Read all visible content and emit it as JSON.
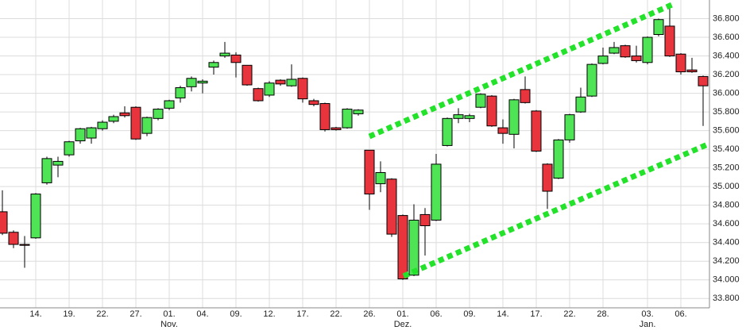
{
  "chart_data": {
    "type": "candlestick",
    "categories": [
      null,
      null,
      null,
      "14.",
      null,
      null,
      "19.",
      null,
      null,
      "22.",
      null,
      null,
      "27.",
      null,
      null,
      "01.",
      null,
      null,
      "04.",
      null,
      null,
      "09.",
      null,
      null,
      "12.",
      null,
      null,
      "17.",
      null,
      null,
      "22.",
      null,
      null,
      "26.",
      null,
      null,
      "01.",
      null,
      null,
      "06.",
      null,
      null,
      "09.",
      null,
      null,
      "14.",
      null,
      null,
      "17.",
      null,
      null,
      "22.",
      null,
      null,
      "28.",
      null,
      null,
      null,
      "03.",
      null,
      null,
      "06.",
      null,
      null
    ],
    "months": [
      null,
      null,
      null,
      null,
      null,
      null,
      null,
      null,
      null,
      null,
      null,
      null,
      null,
      null,
      null,
      "Nov.",
      null,
      null,
      null,
      null,
      null,
      null,
      null,
      null,
      null,
      null,
      null,
      null,
      null,
      null,
      null,
      null,
      null,
      null,
      null,
      null,
      "Dez.",
      null,
      null,
      null,
      null,
      null,
      null,
      null,
      null,
      null,
      null,
      null,
      null,
      null,
      null,
      null,
      null,
      null,
      null,
      null,
      null,
      null,
      "Jan.",
      null,
      null,
      null,
      null,
      null
    ],
    "open": [
      34730,
      34510,
      34380,
      34450,
      35040,
      35230,
      35340,
      35490,
      35520,
      35620,
      35700,
      35790,
      35850,
      35570,
      35730,
      35840,
      35950,
      36070,
      36110,
      36280,
      36400,
      36410,
      36300,
      36050,
      35980,
      36140,
      36080,
      36160,
      35920,
      35890,
      35630,
      35630,
      35780,
      35390,
      35030,
      35080,
      34690,
      34050,
      34700,
      34640,
      35440,
      35730,
      35730,
      35850,
      35970,
      35630,
      35560,
      36040,
      35810,
      35240,
      35090,
      35500,
      35800,
      35970,
      36320,
      36430,
      36510,
      36400,
      36330,
      36630,
      36720,
      36420,
      36250,
      36180
    ],
    "high": [
      34960,
      34530,
      34470,
      34930,
      35320,
      35320,
      35490,
      35630,
      35640,
      35710,
      35770,
      35860,
      35860,
      35750,
      35840,
      35930,
      36080,
      36180,
      36150,
      36350,
      36550,
      36440,
      36300,
      36060,
      36130,
      36150,
      36310,
      36170,
      35940,
      35900,
      35640,
      35840,
      35830,
      35390,
      35270,
      35090,
      34700,
      34810,
      34770,
      35350,
      35740,
      35840,
      35780,
      36000,
      35980,
      35720,
      35940,
      36180,
      35820,
      35250,
      35510,
      35780,
      36060,
      36320,
      36490,
      36550,
      36520,
      36510,
      36610,
      36800,
      36950,
      36430,
      36380,
      36190
    ],
    "low": [
      34480,
      34340,
      34130,
      34440,
      35020,
      35100,
      35320,
      35460,
      35460,
      35600,
      35680,
      35740,
      35500,
      35540,
      35710,
      35820,
      35900,
      36020,
      36000,
      36200,
      36380,
      36170,
      36080,
      35910,
      35960,
      36080,
      36070,
      35900,
      35860,
      35590,
      35600,
      35620,
      35760,
      34750,
      34940,
      34460,
      34000,
      34040,
      34260,
      34630,
      35430,
      35680,
      35690,
      35840,
      35640,
      35460,
      35410,
      35890,
      35370,
      34760,
      35080,
      35470,
      35790,
      35960,
      36310,
      36420,
      36380,
      36330,
      36310,
      36610,
      36390,
      36200,
      36220,
      35650
    ],
    "close": [
      34500,
      34380,
      34370,
      34920,
      35300,
      35270,
      35480,
      35620,
      35630,
      35690,
      35750,
      35760,
      35510,
      35740,
      35830,
      35920,
      36060,
      36160,
      36130,
      36330,
      36430,
      36330,
      36090,
      35920,
      36110,
      36100,
      36150,
      35940,
      35880,
      35610,
      35610,
      35830,
      35820,
      34920,
      35150,
      34490,
      34010,
      34640,
      34580,
      35240,
      35730,
      35770,
      35760,
      35990,
      35650,
      35570,
      35930,
      35900,
      35380,
      34950,
      35500,
      35770,
      35960,
      36310,
      36400,
      36490,
      36390,
      36350,
      36600,
      36790,
      36400,
      36230,
      36230,
      36080
    ],
    "up_color": "#4ee456",
    "down_color": "#e8343c",
    "ylim": [
      33700,
      37000
    ],
    "yticks": [
      {
        "value": 33800,
        "label": "33.800"
      },
      {
        "value": 34000,
        "label": "34.000"
      },
      {
        "value": 34200,
        "label": "34.200"
      },
      {
        "value": 34400,
        "label": "34.400"
      },
      {
        "value": 34600,
        "label": "34.600"
      },
      {
        "value": 34800,
        "label": "34.800"
      },
      {
        "value": 35000,
        "label": "35.000"
      },
      {
        "value": 35200,
        "label": "35.200"
      },
      {
        "value": 35400,
        "label": "35.400"
      },
      {
        "value": 35600,
        "label": "35.600"
      },
      {
        "value": 35800,
        "label": "35.800"
      },
      {
        "value": 36000,
        "label": "36.000"
      },
      {
        "value": 36200,
        "label": "36.200"
      },
      {
        "value": 36400,
        "label": "36.400"
      },
      {
        "value": 36600,
        "label": "36.600"
      },
      {
        "value": 36800,
        "label": "36.800"
      }
    ],
    "grid": true
  }
}
